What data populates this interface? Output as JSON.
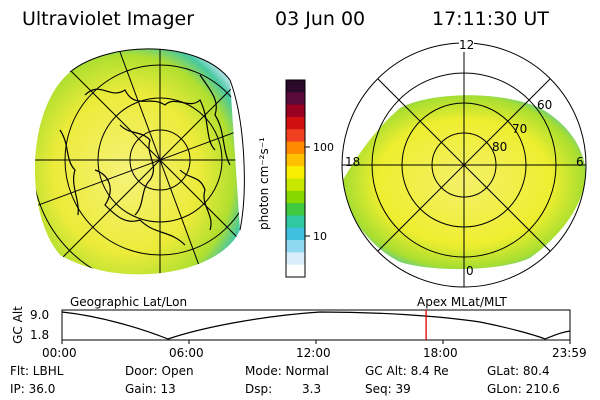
{
  "header": {
    "instrument": "Ultraviolet Imager",
    "date": "03 Jun 00",
    "time": "17:11:30 UT"
  },
  "colorbar": {
    "unit_label": "photon cm⁻²s⁻¹",
    "ticks": [
      "100",
      "10"
    ],
    "colors": [
      "#2a0a2a",
      "#5a0a3a",
      "#9a0020",
      "#d01010",
      "#f04020",
      "#ff8a00",
      "#ffc000",
      "#f8f000",
      "#c8e800",
      "#88d800",
      "#40c840",
      "#30c8a0",
      "#40c0e0",
      "#90d8f0",
      "#d8eef8",
      "#ffffff"
    ]
  },
  "left_panel": {
    "caption": "Geographic Lat/Lon"
  },
  "right_panel": {
    "caption": "Apex MLat/MLT",
    "mlt_labels": {
      "top": "12",
      "bottom": "0",
      "left": "18",
      "right": "6"
    },
    "lat_labels": [
      "60",
      "70",
      "80"
    ]
  },
  "altitude_plot": {
    "ylabel": "GC Alt",
    "yticks": [
      "9.0",
      "1.8"
    ],
    "xticks": [
      "00:00",
      "06:00",
      "12:00",
      "18:00",
      "23:59"
    ],
    "current_time_hours": 17.19,
    "marker_color": "#e00000"
  },
  "info": {
    "filter": "Flt: LBHL",
    "ip": "IP: 36.0",
    "door": "Door: Open",
    "gain": "Gain: 13",
    "mode": "Mode: Normal",
    "dsp_label": "Dsp:",
    "dsp_value": "3.3",
    "gc_alt": "GC Alt: 8.4 Re",
    "seq": "Seq: 39",
    "glat": "GLat: 80.4",
    "glon": "GLon: 210.6"
  },
  "colors": {
    "aurora_yellow": "#f2ef4a",
    "aurora_green": "#a8de30",
    "aurora_teal": "#4cc8a8",
    "aurora_blue": "#7fd0ea"
  }
}
